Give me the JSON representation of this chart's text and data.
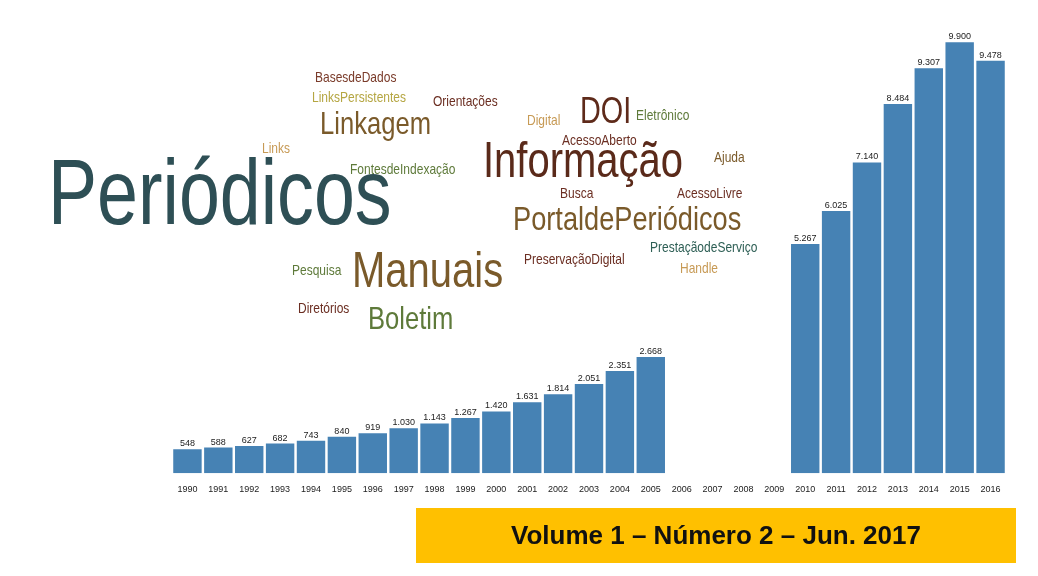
{
  "chart_data": {
    "type": "bar",
    "categories": [
      "1990",
      "1991",
      "1992",
      "1993",
      "1994",
      "1995",
      "1996",
      "1997",
      "1998",
      "1999",
      "2000",
      "2001",
      "2002",
      "2003",
      "2004",
      "2005",
      "2006",
      "2007",
      "2008",
      "2009",
      "2010",
      "2011",
      "2012",
      "2013",
      "2014",
      "2015",
      "2016"
    ],
    "values": [
      548,
      588,
      627,
      682,
      743,
      840,
      919,
      1030,
      1143,
      1267,
      1420,
      1631,
      1814,
      2051,
      2351,
      2668,
      null,
      null,
      null,
      null,
      5267,
      6025,
      7140,
      8484,
      9307,
      9900,
      9478
    ],
    "value_labels": [
      "548",
      "588",
      "627",
      "682",
      "743",
      "840",
      "919",
      "1.030",
      "1.143",
      "1.267",
      "1.420",
      "1.631",
      "1.814",
      "2.051",
      "2.351",
      "2.668",
      null,
      null,
      null,
      null,
      "5.267",
      "6.025",
      "7.140",
      "8.484",
      "9.307",
      "9.900",
      "9.478"
    ],
    "color": "#4682b4",
    "annotations": [
      "BasesdeDados",
      "LinksPersistentes",
      "Orientações",
      "Linkagem",
      "DOI",
      "Eletrônico",
      "Digital",
      "AcessoAberto",
      "Informação",
      "Ajuda",
      "Links",
      "FontesdeIndexação",
      "Periódicos",
      "Busca",
      "AcessoLivre",
      "PortaldePeriódicos",
      "PrestaçãodeServiço",
      "PreservaçãoDigital",
      "Handle",
      "Pesquisa",
      "Manuais",
      "Diretórios",
      "Boletim",
      "Volume 1 – Número 2 – Jun. 2017"
    ]
  }
}
